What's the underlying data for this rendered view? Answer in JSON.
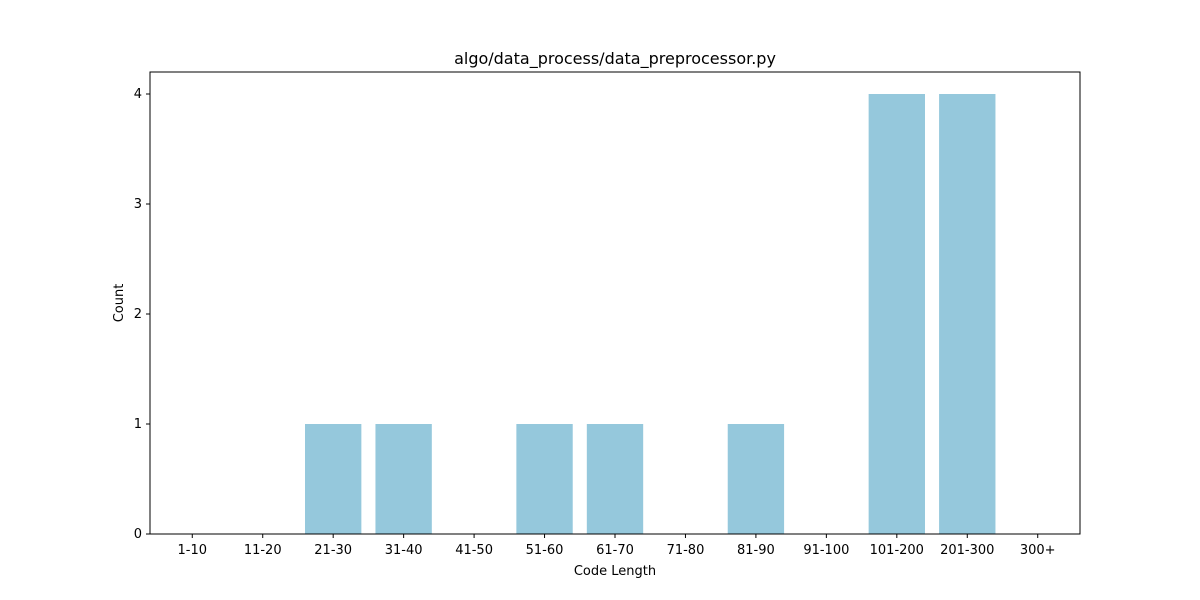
{
  "chart_data": {
    "type": "bar",
    "title": "algo/data_process/data_preprocessor.py",
    "xlabel": "Code Length",
    "ylabel": "Count",
    "categories": [
      "1-10",
      "11-20",
      "21-30",
      "31-40",
      "41-50",
      "51-60",
      "61-70",
      "71-80",
      "81-90",
      "91-100",
      "101-200",
      "201-300",
      "300+"
    ],
    "values": [
      0,
      0,
      1,
      1,
      0,
      1,
      1,
      0,
      1,
      0,
      4,
      4,
      0
    ],
    "ylim": [
      0,
      4.2
    ],
    "yticks": [
      0,
      1,
      2,
      3,
      4
    ],
    "grid": false,
    "legend": "none",
    "bar_color": "#95c8dc"
  }
}
